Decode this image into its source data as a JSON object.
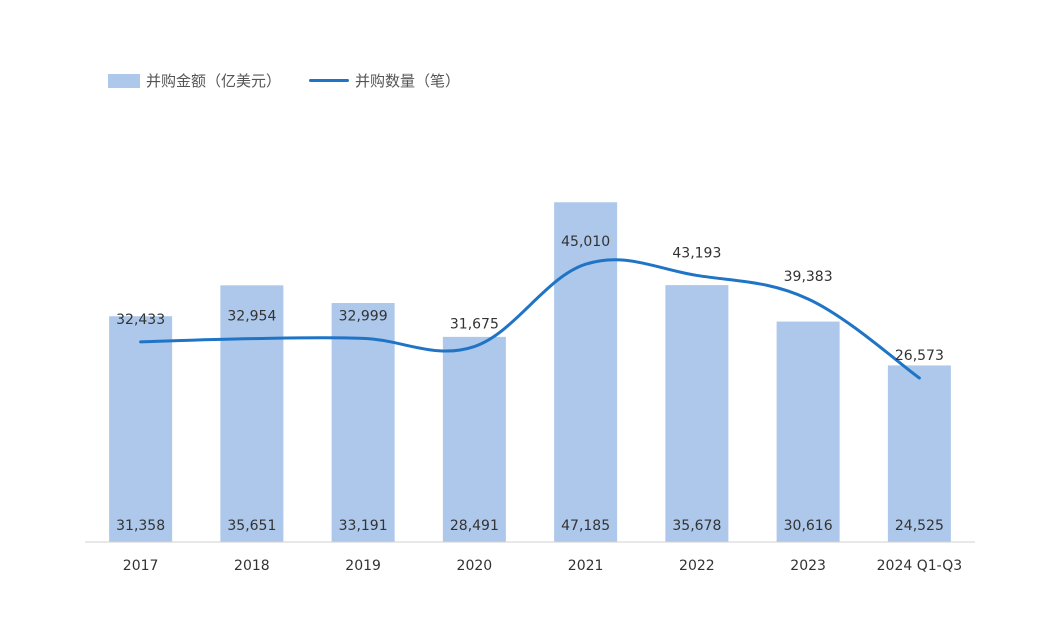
{
  "chart_data": {
    "type": "bar",
    "categories": [
      "2017",
      "2018",
      "2019",
      "2020",
      "2021",
      "2022",
      "2023",
      "2024 Q1-Q3"
    ],
    "series": [
      {
        "name": "并购金额（亿美元）",
        "type": "bar",
        "values": [
          31358,
          35651,
          33191,
          28491,
          47185,
          35678,
          30616,
          24525
        ],
        "axis": "left"
      },
      {
        "name": "并购数量（笔）",
        "type": "line",
        "values": [
          32433,
          32954,
          32999,
          31675,
          45010,
          43193,
          39383,
          26573
        ],
        "axis": "right"
      }
    ],
    "left_axis_range": [
      0,
      60000
    ],
    "right_axis_range": [
      0,
      70000
    ],
    "grid": false,
    "legend_position": "top-left",
    "colors": {
      "bar": "#adc8ea",
      "line": "#1f74c6",
      "axis": "#d0d0d0",
      "text": "#333333"
    }
  }
}
